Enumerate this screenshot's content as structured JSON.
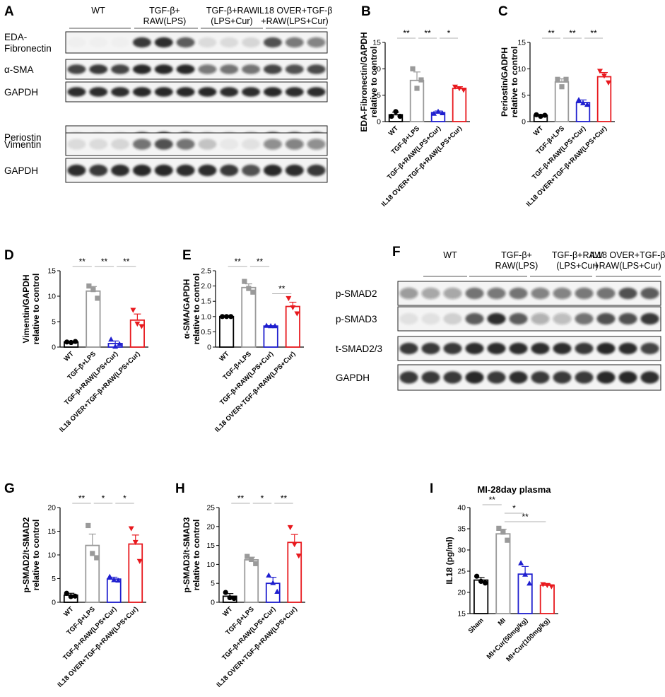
{
  "colors": {
    "wt": "#000000",
    "lps": "#9a9a9a",
    "cur": "#1f1fcf",
    "il18": "#e8191e",
    "band": "#1a1a1a"
  },
  "blot_a": {
    "groups": [
      "WT",
      "TGF-β+\nRAW(LPS)",
      "TGF-β+RAW\n(LPS+Cur)",
      "IL18 OVER+TGF-β\n+RAW(LPS+Cur)"
    ],
    "rows": [
      {
        "label": "EDA-\nFibronectin",
        "intensity": [
          0.02,
          0.02,
          0.02,
          0.85,
          0.9,
          0.7,
          0.1,
          0.1,
          0.12,
          0.75,
          0.55,
          0.5
        ]
      },
      {
        "label": "α-SMA",
        "intensity": [
          0.8,
          0.85,
          0.8,
          0.95,
          0.95,
          0.92,
          0.55,
          0.6,
          0.6,
          0.8,
          0.75,
          0.78
        ]
      },
      {
        "label": "GAPDH",
        "intensity": [
          0.9,
          0.9,
          0.9,
          0.95,
          0.92,
          0.92,
          0.92,
          0.9,
          0.9,
          0.92,
          0.9,
          0.9
        ]
      },
      {
        "label": "Periostin",
        "intensity": [
          0.1,
          0.08,
          0.1,
          0.6,
          0.85,
          0.6,
          0.2,
          0.2,
          0.3,
          0.65,
          0.6,
          0.55
        ]
      },
      {
        "label": "Vimentin",
        "intensity": [
          0.1,
          0.1,
          0.12,
          0.6,
          0.75,
          0.6,
          0.2,
          0.05,
          0.08,
          0.45,
          0.5,
          0.45
        ]
      },
      {
        "label": "GAPDH",
        "intensity": [
          0.9,
          0.85,
          0.9,
          0.92,
          0.92,
          0.9,
          0.9,
          0.85,
          0.75,
          0.92,
          0.9,
          0.85
        ]
      }
    ]
  },
  "blot_f": {
    "groups": [
      "WT",
      "TGF-β+\nRAW(LPS)",
      "TGF-β+RAW\n(LPS+Cur)",
      "IL18 OVER+TGF-β\n+RAW(LPS+Cur)"
    ],
    "rows": [
      {
        "label": "p-SMAD2",
        "intensity": [
          0.4,
          0.35,
          0.35,
          0.6,
          0.55,
          0.6,
          0.5,
          0.5,
          0.55,
          0.6,
          0.75,
          0.7
        ]
      },
      {
        "label": "p-SMAD3",
        "intensity": [
          0.08,
          0.08,
          0.15,
          0.7,
          0.9,
          0.7,
          0.3,
          0.25,
          0.6,
          0.75,
          0.75,
          0.85
        ]
      },
      {
        "label": "t-SMAD2/3",
        "intensity": [
          0.85,
          0.85,
          0.85,
          0.9,
          0.9,
          0.9,
          0.9,
          0.9,
          0.85,
          0.95,
          0.9,
          0.8
        ]
      },
      {
        "label": "GAPDH",
        "intensity": [
          0.85,
          0.85,
          0.85,
          0.95,
          0.85,
          0.9,
          0.85,
          0.85,
          0.85,
          0.95,
          0.95,
          0.9
        ]
      }
    ]
  },
  "panel_letters": [
    "A",
    "B",
    "C",
    "D",
    "E",
    "F",
    "G",
    "H",
    "I"
  ],
  "chart_data": [
    {
      "panel": "B",
      "type": "bar",
      "title": "",
      "ylabel": "EDA-Fibronectin/GAPDH\nrelative to control",
      "categories": [
        "WT",
        "TGF-β+LPS",
        "TGF-β+RAW(LPS+Cur)",
        "IL18 OVER+TGF-β+RAW(LPS+Cur)"
      ],
      "values": [
        1.3,
        7.8,
        1.7,
        6.3
      ],
      "errors": [
        0.5,
        1.6,
        0.3,
        0.3
      ],
      "points": [
        [
          1.0,
          1.9,
          1.0
        ],
        [
          10.0,
          6.3,
          7.9
        ],
        [
          1.5,
          1.9,
          1.6
        ],
        [
          6.6,
          6.3,
          6.0
        ]
      ],
      "ylim": [
        0,
        15
      ],
      "yticks": [
        0,
        5,
        10,
        15
      ],
      "sig": [
        {
          "from": 0,
          "to": 1,
          "label": "**"
        },
        {
          "from": 1,
          "to": 2,
          "label": "**"
        },
        {
          "from": 2,
          "to": 3,
          "label": "*"
        }
      ]
    },
    {
      "panel": "C",
      "type": "bar",
      "title": "",
      "ylabel": "Periostin/GADPH\nrelative to control",
      "categories": [
        "WT",
        "TGF-β+LPS",
        "TGF-β+RAW(LPS+Cur)",
        "IL18 OVER+TGF-β+RAW(LPS+Cur)"
      ],
      "values": [
        1.2,
        7.5,
        3.6,
        8.5
      ],
      "errors": [
        0.15,
        0.6,
        0.5,
        0.8
      ],
      "points": [
        [
          1.3,
          1.0,
          1.2
        ],
        [
          8.0,
          6.6,
          8.0
        ],
        [
          4.1,
          3.5,
          3.2
        ],
        [
          9.6,
          8.7,
          7.4
        ]
      ],
      "ylim": [
        0,
        15
      ],
      "yticks": [
        0,
        5,
        10,
        15
      ],
      "sig": [
        {
          "from": 0,
          "to": 1,
          "label": "**"
        },
        {
          "from": 1,
          "to": 2,
          "label": "**"
        },
        {
          "from": 2,
          "to": 3,
          "label": "**"
        }
      ]
    },
    {
      "panel": "D",
      "type": "bar",
      "title": "",
      "ylabel": "Vimentin/GAPDH\nrelative to control",
      "categories": [
        "WT",
        "TGF-β+LPS",
        "TGF-β+RAW(LPS+Cur)",
        "IL18 OVER+TGF-β+RAW(LPS+Cur)"
      ],
      "values": [
        1.0,
        11.0,
        0.7,
        5.3
      ],
      "errors": [
        0.1,
        0.9,
        0.5,
        1.2
      ],
      "points": [
        [
          1.0,
          0.9,
          1.1
        ],
        [
          12.0,
          11.3,
          9.6
        ],
        [
          1.5,
          0.1,
          0.6
        ],
        [
          7.3,
          4.6,
          4.1
        ]
      ],
      "ylim": [
        0,
        15
      ],
      "yticks": [
        0,
        5,
        10,
        15
      ],
      "sig": [
        {
          "from": 0,
          "to": 1,
          "label": "**"
        },
        {
          "from": 1,
          "to": 2,
          "label": "**"
        },
        {
          "from": 2,
          "to": 3,
          "label": "**"
        }
      ]
    },
    {
      "panel": "E",
      "type": "bar",
      "title": "",
      "ylabel": "α-SMA/GAPDH\nrelative to control",
      "categories": [
        "WT",
        "TGF-β+LPS",
        "TGF-β+RAW(LPS+Cur)",
        "IL18 OVER+TGF-β+RAW(LPS+Cur)"
      ],
      "values": [
        1.0,
        1.95,
        0.69,
        1.33
      ],
      "errors": [
        0.01,
        0.12,
        0.01,
        0.14
      ],
      "points": [
        [
          1.0,
          1.0,
          1.0
        ],
        [
          2.15,
          1.92,
          1.8
        ],
        [
          0.7,
          0.69,
          0.69
        ],
        [
          1.6,
          1.3,
          1.1
        ]
      ],
      "ylim": [
        0,
        2.5
      ],
      "yticks": [
        0,
        0.5,
        1.0,
        1.5,
        2.0,
        2.5
      ],
      "sig": [
        {
          "from": 0,
          "to": 1,
          "label": "**"
        },
        {
          "from": 1,
          "to": 2,
          "label": "**"
        },
        {
          "from": 2,
          "to": 3,
          "label": "**"
        }
      ]
    },
    {
      "panel": "G",
      "type": "bar",
      "title": "",
      "ylabel": "p-SMAD2/t-SMAD2\nrelative to control",
      "categories": [
        "WT",
        "TGF-β+LPS",
        "TGF-β+RAW(LPS+Cur)",
        "IL18 OVER+TGF-β+RAW(LPS+Cur)"
      ],
      "values": [
        1.5,
        12.0,
        4.9,
        12.3
      ],
      "errors": [
        0.4,
        2.4,
        0.4,
        1.9
      ],
      "points": [
        [
          1.9,
          1.2,
          1.3
        ],
        [
          16.2,
          10.3,
          9.4
        ],
        [
          5.4,
          4.7,
          4.6
        ],
        [
          15.6,
          12.7,
          8.7
        ]
      ],
      "ylim": [
        0,
        20
      ],
      "yticks": [
        0,
        5,
        10,
        15,
        20
      ],
      "sig": [
        {
          "from": 0,
          "to": 1,
          "label": "**"
        },
        {
          "from": 1,
          "to": 2,
          "label": "*"
        },
        {
          "from": 2,
          "to": 3,
          "label": "*"
        }
      ]
    },
    {
      "panel": "H",
      "type": "bar",
      "title": "",
      "ylabel": "p-SMAD3/t-SMAD3\nrelative to control",
      "categories": [
        "WT",
        "TGF-β+LPS",
        "TGF-β+RAW(LPS+Cur)",
        "IL18 OVER+TGF-β+RAW(LPS+Cur)"
      ],
      "values": [
        1.6,
        11.2,
        5.0,
        15.8
      ],
      "errors": [
        0.7,
        0.7,
        1.6,
        2.1
      ],
      "points": [
        [
          2.6,
          1.2,
          1.0
        ],
        [
          12.1,
          11.3,
          10.2
        ],
        [
          7.1,
          5.1,
          2.8
        ],
        [
          19.8,
          15.3,
          12.3
        ]
      ],
      "ylim": [
        0,
        25
      ],
      "yticks": [
        0,
        5,
        10,
        15,
        20,
        25
      ],
      "sig": [
        {
          "from": 0,
          "to": 1,
          "label": "**"
        },
        {
          "from": 1,
          "to": 2,
          "label": "*"
        },
        {
          "from": 2,
          "to": 3,
          "label": "**"
        }
      ]
    },
    {
      "panel": "I",
      "type": "bar",
      "title": "MI-28day plasma",
      "ylabel": "IL18  (pg/ml)",
      "categories": [
        "Sham",
        "MI",
        "MI+Cur(50mg/kg)",
        "MI+Cur(100mg/kg)"
      ],
      "values": [
        22.9,
        33.8,
        24.3,
        21.7
      ],
      "errors": [
        0.6,
        1.1,
        1.8,
        0.3
      ],
      "points": [
        [
          23.8,
          22.6,
          22.2
        ],
        [
          35.1,
          34.2,
          32.3
        ],
        [
          26.9,
          24.2,
          22.1
        ],
        [
          21.9,
          21.7,
          21.4
        ]
      ],
      "ylim": [
        15,
        40
      ],
      "yticks": [
        15,
        20,
        25,
        30,
        35,
        40
      ],
      "sig": [
        {
          "from": 0,
          "to": 1,
          "label": "**"
        },
        {
          "from": 1,
          "to": 2,
          "label": "*"
        },
        {
          "from": 1,
          "to": 3,
          "label": "**"
        }
      ]
    }
  ]
}
